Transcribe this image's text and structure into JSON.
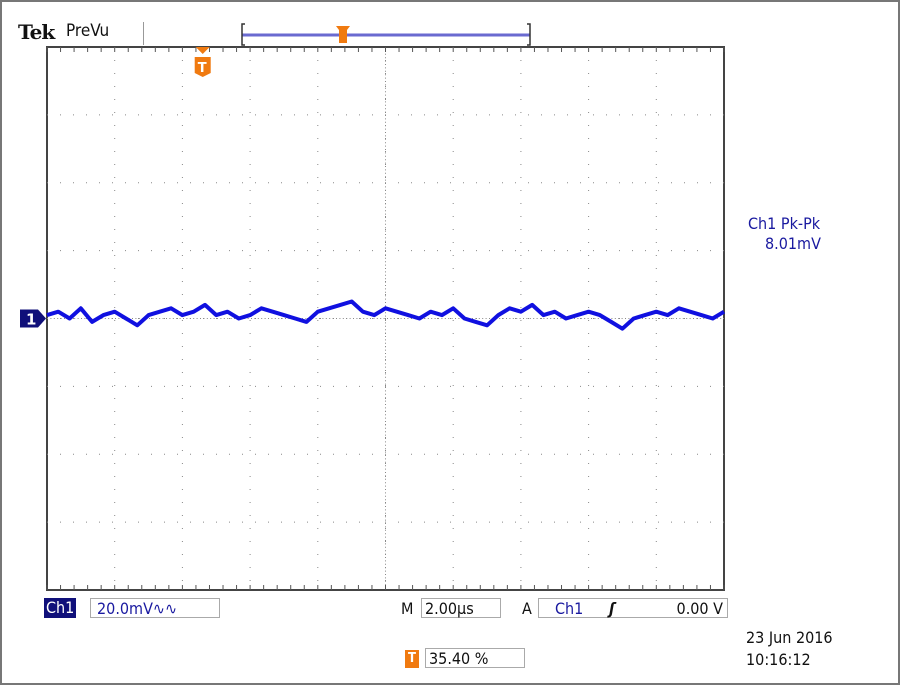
{
  "header": {
    "brand": "Tek",
    "mode": "PreVu"
  },
  "measurement": {
    "label": "Ch1 Pk-Pk",
    "value": "8.01mV"
  },
  "channel": {
    "badge": "Ch1",
    "scale": "20.0mV∿∿",
    "marker": "1"
  },
  "horizontal": {
    "m_label": "M",
    "timebase": "2.00µs"
  },
  "trigger": {
    "a_label": "A",
    "source": "Ch1",
    "slope": "ʃ",
    "level": "0.00 V",
    "position_icon": "T",
    "position": "35.40 %"
  },
  "datetime": {
    "date": "23 Jun  2016",
    "time": "10:16:12"
  },
  "colors": {
    "trace": "#1010e0",
    "trigger": "#f07a10",
    "label": "#1a1aa0",
    "grid": "#888888"
  },
  "chart_data": {
    "type": "line",
    "grid": true,
    "x_divisions": 10,
    "y_divisions": 8,
    "x_unit": "µs",
    "y_unit": "mV",
    "xlim": [
      0,
      20
    ],
    "ylim": [
      -80,
      80
    ],
    "trigger_time_us": 4.6,
    "series": [
      {
        "x_step_us": 0.333,
        "values": [
          1,
          2,
          0,
          3,
          -1,
          1,
          2,
          0,
          -2,
          1,
          2,
          3,
          1,
          2,
          4,
          1,
          2,
          0,
          1,
          3,
          2,
          1,
          0,
          -1,
          2,
          3,
          4,
          5,
          2,
          1,
          3,
          2,
          1,
          0,
          2,
          1,
          3,
          0,
          -1,
          -2,
          1,
          3,
          2,
          4,
          1,
          2,
          0,
          1,
          2,
          1,
          -1,
          -3,
          0,
          1,
          2,
          1,
          3,
          2,
          1,
          0,
          2
        ]
      }
    ]
  }
}
